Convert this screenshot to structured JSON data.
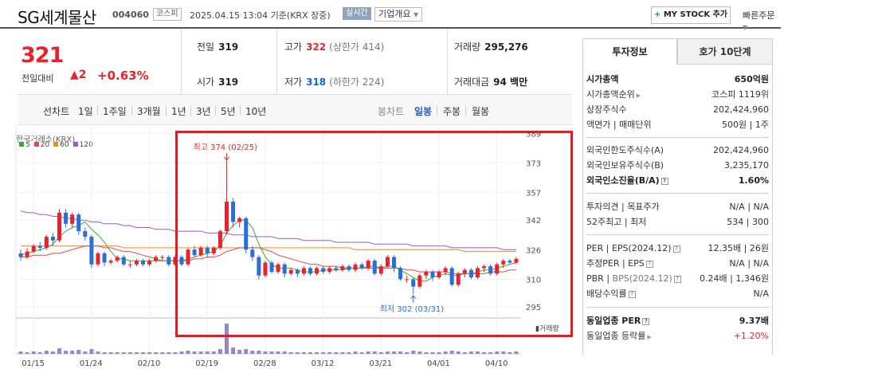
{
  "header": {
    "title": "SG세계물산",
    "code": "004060",
    "market": "코스피",
    "datetime": "2025.04.15 13:04 기준(KRX 장중)",
    "realtime": "실시간",
    "overview": "기업개요",
    "mystock": "MY STOCK 추가",
    "quickorder": "빠른주문"
  },
  "price": {
    "current": "321",
    "prev_label": "전일대비",
    "change": "▲2",
    "pct": "+0.63%"
  },
  "stats": {
    "prev_close": {
      "label": "전일",
      "value": "319"
    },
    "high": {
      "label": "고가",
      "value": "322",
      "sub": "(상한가 414)"
    },
    "volume": {
      "label": "거래량",
      "value": "295,276"
    },
    "open": {
      "label": "시가",
      "value": "319"
    },
    "low": {
      "label": "저가",
      "value": "318",
      "sub": "(하한가 224)"
    },
    "amount": {
      "label": "거래대금",
      "value": "94 백만"
    }
  },
  "periods": {
    "line": "선차트",
    "line_tabs": [
      "1일",
      "1주일",
      "3개월",
      "1년",
      "3년",
      "5년",
      "10년"
    ],
    "candle": "봉차트",
    "candle_tabs": [
      "일봉",
      "주봉",
      "월봉"
    ],
    "candle_active": 0
  },
  "chart_meta": {
    "exchange": "한국거래소(KRX)",
    "legend": [
      {
        "label": "5",
        "color": "#3aa835"
      },
      {
        "label": "20",
        "color": "#e84545"
      },
      {
        "label": "60",
        "color": "#f28b1c"
      },
      {
        "label": "120",
        "color": "#9b5cc8"
      }
    ],
    "high_note": "최고 374 (02/25)",
    "low_note": "최저 302 (03/31)",
    "volume_label": "거래량"
  },
  "chart_data": {
    "type": "candlestick",
    "y_ticks": [
      389,
      373,
      357,
      342,
      326,
      310,
      295
    ],
    "ylim": [
      289,
      393
    ],
    "x_ticks": [
      "01/15",
      "01/24",
      "02/10",
      "02/19",
      "02/28",
      "03/12",
      "03/21",
      "04/01",
      "04/10"
    ],
    "candles": [
      {
        "o": 324,
        "c": 322,
        "h": 326,
        "l": 320,
        "v": 3
      },
      {
        "o": 322,
        "c": 325,
        "h": 327,
        "l": 321,
        "v": 2
      },
      {
        "o": 325,
        "c": 328,
        "h": 329,
        "l": 324,
        "v": 3
      },
      {
        "o": 328,
        "c": 327,
        "h": 330,
        "l": 325,
        "v": 2
      },
      {
        "o": 327,
        "c": 333,
        "h": 334,
        "l": 326,
        "v": 4
      },
      {
        "o": 333,
        "c": 331,
        "h": 335,
        "l": 328,
        "v": 3
      },
      {
        "o": 331,
        "c": 346,
        "h": 348,
        "l": 330,
        "v": 7
      },
      {
        "o": 346,
        "c": 340,
        "h": 348,
        "l": 338,
        "v": 4
      },
      {
        "o": 340,
        "c": 345,
        "h": 346,
        "l": 338,
        "v": 4
      },
      {
        "o": 345,
        "c": 336,
        "h": 346,
        "l": 334,
        "v": 5
      },
      {
        "o": 336,
        "c": 333,
        "h": 338,
        "l": 331,
        "v": 3
      },
      {
        "o": 333,
        "c": 318,
        "h": 334,
        "l": 316,
        "v": 6
      },
      {
        "o": 318,
        "c": 324,
        "h": 325,
        "l": 317,
        "v": 3
      },
      {
        "o": 324,
        "c": 319,
        "h": 325,
        "l": 317,
        "v": 2
      },
      {
        "o": 319,
        "c": 320,
        "h": 321,
        "l": 318,
        "v": 2
      },
      {
        "o": 320,
        "c": 322,
        "h": 323,
        "l": 319,
        "v": 2
      },
      {
        "o": 322,
        "c": 318,
        "h": 323,
        "l": 317,
        "v": 2
      },
      {
        "o": 318,
        "c": 318,
        "h": 320,
        "l": 316,
        "v": 2
      },
      {
        "o": 318,
        "c": 320,
        "h": 321,
        "l": 317,
        "v": 2
      },
      {
        "o": 320,
        "c": 318,
        "h": 321,
        "l": 317,
        "v": 2
      },
      {
        "o": 318,
        "c": 320,
        "h": 321,
        "l": 317,
        "v": 2
      },
      {
        "o": 320,
        "c": 322,
        "h": 323,
        "l": 319,
        "v": 2
      },
      {
        "o": 322,
        "c": 322,
        "h": 323,
        "l": 320,
        "v": 2
      },
      {
        "o": 322,
        "c": 318,
        "h": 323,
        "l": 317,
        "v": 2
      },
      {
        "o": 318,
        "c": 322,
        "h": 323,
        "l": 317,
        "v": 2
      },
      {
        "o": 322,
        "c": 318,
        "h": 323,
        "l": 317,
        "v": 3
      },
      {
        "o": 318,
        "c": 326,
        "h": 327,
        "l": 317,
        "v": 4
      },
      {
        "o": 326,
        "c": 323,
        "h": 328,
        "l": 322,
        "v": 3
      },
      {
        "o": 323,
        "c": 327,
        "h": 328,
        "l": 322,
        "v": 3
      },
      {
        "o": 327,
        "c": 324,
        "h": 328,
        "l": 322,
        "v": 3
      },
      {
        "o": 324,
        "c": 327,
        "h": 328,
        "l": 323,
        "v": 3
      },
      {
        "o": 327,
        "c": 336,
        "h": 337,
        "l": 326,
        "v": 6
      },
      {
        "o": 336,
        "c": 352,
        "h": 374,
        "l": 334,
        "v": 38
      },
      {
        "o": 352,
        "c": 341,
        "h": 354,
        "l": 338,
        "v": 8
      },
      {
        "o": 341,
        "c": 343,
        "h": 344,
        "l": 338,
        "v": 5
      },
      {
        "o": 343,
        "c": 326,
        "h": 344,
        "l": 324,
        "v": 6
      },
      {
        "o": 326,
        "c": 322,
        "h": 328,
        "l": 320,
        "v": 4
      },
      {
        "o": 322,
        "c": 312,
        "h": 323,
        "l": 310,
        "v": 4
      },
      {
        "o": 312,
        "c": 319,
        "h": 320,
        "l": 311,
        "v": 3
      },
      {
        "o": 319,
        "c": 314,
        "h": 320,
        "l": 313,
        "v": 3
      },
      {
        "o": 314,
        "c": 318,
        "h": 319,
        "l": 313,
        "v": 3
      },
      {
        "o": 318,
        "c": 313,
        "h": 319,
        "l": 311,
        "v": 3
      },
      {
        "o": 313,
        "c": 315,
        "h": 316,
        "l": 312,
        "v": 2
      },
      {
        "o": 315,
        "c": 313,
        "h": 316,
        "l": 311,
        "v": 2
      },
      {
        "o": 313,
        "c": 316,
        "h": 317,
        "l": 312,
        "v": 2
      },
      {
        "o": 316,
        "c": 313,
        "h": 317,
        "l": 312,
        "v": 2
      },
      {
        "o": 313,
        "c": 316,
        "h": 317,
        "l": 312,
        "v": 2
      },
      {
        "o": 316,
        "c": 314,
        "h": 317,
        "l": 313,
        "v": 2
      },
      {
        "o": 314,
        "c": 316,
        "h": 317,
        "l": 313,
        "v": 2
      },
      {
        "o": 316,
        "c": 315,
        "h": 317,
        "l": 314,
        "v": 2
      },
      {
        "o": 315,
        "c": 317,
        "h": 318,
        "l": 314,
        "v": 2
      },
      {
        "o": 317,
        "c": 315,
        "h": 318,
        "l": 314,
        "v": 2
      },
      {
        "o": 315,
        "c": 318,
        "h": 319,
        "l": 314,
        "v": 3
      },
      {
        "o": 318,
        "c": 316,
        "h": 319,
        "l": 315,
        "v": 2
      },
      {
        "o": 316,
        "c": 320,
        "h": 321,
        "l": 315,
        "v": 3
      },
      {
        "o": 320,
        "c": 313,
        "h": 321,
        "l": 312,
        "v": 3
      },
      {
        "o": 313,
        "c": 317,
        "h": 318,
        "l": 312,
        "v": 2
      },
      {
        "o": 317,
        "c": 322,
        "h": 323,
        "l": 316,
        "v": 3
      },
      {
        "o": 322,
        "c": 316,
        "h": 323,
        "l": 314,
        "v": 3
      },
      {
        "o": 316,
        "c": 310,
        "h": 317,
        "l": 309,
        "v": 3
      },
      {
        "o": 310,
        "c": 310,
        "h": 312,
        "l": 308,
        "v": 2
      },
      {
        "o": 310,
        "c": 306,
        "h": 311,
        "l": 302,
        "v": 4
      },
      {
        "o": 306,
        "c": 312,
        "h": 313,
        "l": 305,
        "v": 3
      },
      {
        "o": 312,
        "c": 314,
        "h": 315,
        "l": 310,
        "v": 2
      },
      {
        "o": 314,
        "c": 311,
        "h": 315,
        "l": 309,
        "v": 2
      },
      {
        "o": 311,
        "c": 314,
        "h": 315,
        "l": 310,
        "v": 2
      },
      {
        "o": 314,
        "c": 316,
        "h": 317,
        "l": 312,
        "v": 3
      },
      {
        "o": 316,
        "c": 307,
        "h": 317,
        "l": 306,
        "v": 4
      },
      {
        "o": 307,
        "c": 313,
        "h": 314,
        "l": 306,
        "v": 3
      },
      {
        "o": 313,
        "c": 315,
        "h": 316,
        "l": 311,
        "v": 2
      },
      {
        "o": 315,
        "c": 311,
        "h": 316,
        "l": 310,
        "v": 3
      },
      {
        "o": 311,
        "c": 316,
        "h": 317,
        "l": 310,
        "v": 3
      },
      {
        "o": 316,
        "c": 317,
        "h": 318,
        "l": 314,
        "v": 2
      },
      {
        "o": 317,
        "c": 313,
        "h": 318,
        "l": 312,
        "v": 2
      },
      {
        "o": 313,
        "c": 318,
        "h": 319,
        "l": 312,
        "v": 3
      },
      {
        "o": 318,
        "c": 320,
        "h": 321,
        "l": 316,
        "v": 3
      },
      {
        "o": 320,
        "c": 319,
        "h": 321,
        "l": 318,
        "v": 2
      },
      {
        "o": 319,
        "c": 321,
        "h": 322,
        "l": 318,
        "v": 3
      }
    ],
    "ma5": [
      323,
      324,
      325,
      326,
      327,
      329,
      333,
      336,
      338,
      339,
      341,
      337,
      334,
      330,
      325,
      321,
      321,
      320,
      320,
      320,
      320,
      320,
      320,
      320,
      320,
      320,
      321,
      322,
      323,
      324,
      325,
      328,
      335,
      339,
      342,
      342,
      338,
      329,
      322,
      318,
      316,
      316,
      316,
      315,
      314,
      314,
      314,
      315,
      315,
      315,
      315,
      316,
      316,
      316,
      317,
      317,
      316,
      317,
      317,
      315,
      313,
      311,
      309,
      309,
      311,
      312,
      313,
      312,
      312,
      313,
      313,
      314,
      315,
      315,
      316,
      317,
      318,
      319
    ],
    "ma20": [
      322,
      322,
      323,
      323,
      323,
      324,
      324,
      325,
      326,
      327,
      328,
      328,
      328,
      327,
      327,
      326,
      325,
      325,
      324,
      323,
      322,
      321,
      320,
      320,
      320,
      320,
      320,
      321,
      321,
      322,
      322,
      323,
      325,
      326,
      327,
      327,
      327,
      327,
      326,
      325,
      323,
      322,
      321,
      320,
      319,
      318,
      318,
      317,
      317,
      317,
      316,
      316,
      316,
      316,
      316,
      316,
      316,
      316,
      316,
      316,
      315,
      315,
      314,
      314,
      314,
      314,
      314,
      313,
      313,
      313,
      313,
      313,
      313,
      314,
      314,
      314,
      315,
      315
    ],
    "ma60": [
      328,
      328,
      328,
      328,
      328,
      328,
      328,
      328,
      328,
      328,
      328,
      328,
      328,
      328,
      328,
      328,
      327,
      327,
      327,
      327,
      327,
      327,
      327,
      327,
      327,
      327,
      327,
      327,
      327,
      327,
      327,
      327,
      327,
      327,
      327,
      327,
      327,
      327,
      327,
      327,
      327,
      327,
      327,
      327,
      327,
      327,
      327,
      327,
      327,
      327,
      327,
      327,
      326,
      326,
      326,
      326,
      326,
      326,
      326,
      326,
      326,
      326,
      326,
      326,
      326,
      326,
      326,
      326,
      326,
      325,
      325,
      325,
      325,
      325,
      325,
      325,
      325,
      325
    ],
    "ma120": [
      347,
      346,
      346,
      345,
      345,
      344,
      344,
      343,
      343,
      342,
      342,
      341,
      341,
      340,
      340,
      340,
      339,
      339,
      338,
      338,
      338,
      337,
      337,
      337,
      336,
      336,
      336,
      336,
      336,
      335,
      335,
      335,
      335,
      334,
      334,
      334,
      333,
      333,
      333,
      333,
      332,
      332,
      332,
      332,
      331,
      331,
      331,
      331,
      331,
      330,
      330,
      330,
      330,
      330,
      330,
      329,
      329,
      329,
      329,
      329,
      329,
      328,
      328,
      328,
      328,
      328,
      328,
      327,
      327,
      327,
      327,
      327,
      327,
      327,
      327,
      326,
      326,
      326
    ]
  },
  "invest": {
    "tab_on": "투자정보",
    "tab_off": "호가 10단계",
    "mcap_label": "시가총액",
    "mcap": "650억원",
    "rank_label": "시가총액순위",
    "rank": "코스피 1119위",
    "shares_label": "상장주식수",
    "shares": "202,424,960",
    "par_label": "액면가",
    "par_sep": "매매단위",
    "par": "500원",
    "unit": "1주",
    "foreign_limit_label": "외국인한도주식수(A)",
    "foreign_limit": "202,424,960",
    "foreign_hold_label": "외국인보유주식수(B)",
    "foreign_hold": "3,235,170",
    "foreign_rate_label": "외국인소진율(B/A)",
    "foreign_rate": "1.60%",
    "opinion_label": "투자의견",
    "target_label": "목표주가",
    "opinion": "N/A",
    "target": "N/A",
    "week52_label": "52주최고",
    "week52_low_label": "최저",
    "week52_high": "534",
    "week52_low": "300",
    "per_label": "PER",
    "eps_label": "EPS(2024.12)",
    "per": "12.35배",
    "eps": "26원",
    "est_per_label": "추정PER",
    "est_eps_label": "EPS",
    "est_per": "N/A",
    "est_eps": "N/A",
    "pbr_label": "PBR",
    "bps_label": "BPS(2024.12)",
    "pbr": "0.24배",
    "bps": "1,346원",
    "div_label": "배당수익률",
    "div": "N/A",
    "ind_per_label": "동일업종 PER",
    "ind_per": "9.37배",
    "ind_rate_label": "동일업종 등락률",
    "ind_rate": "+1.20%"
  }
}
